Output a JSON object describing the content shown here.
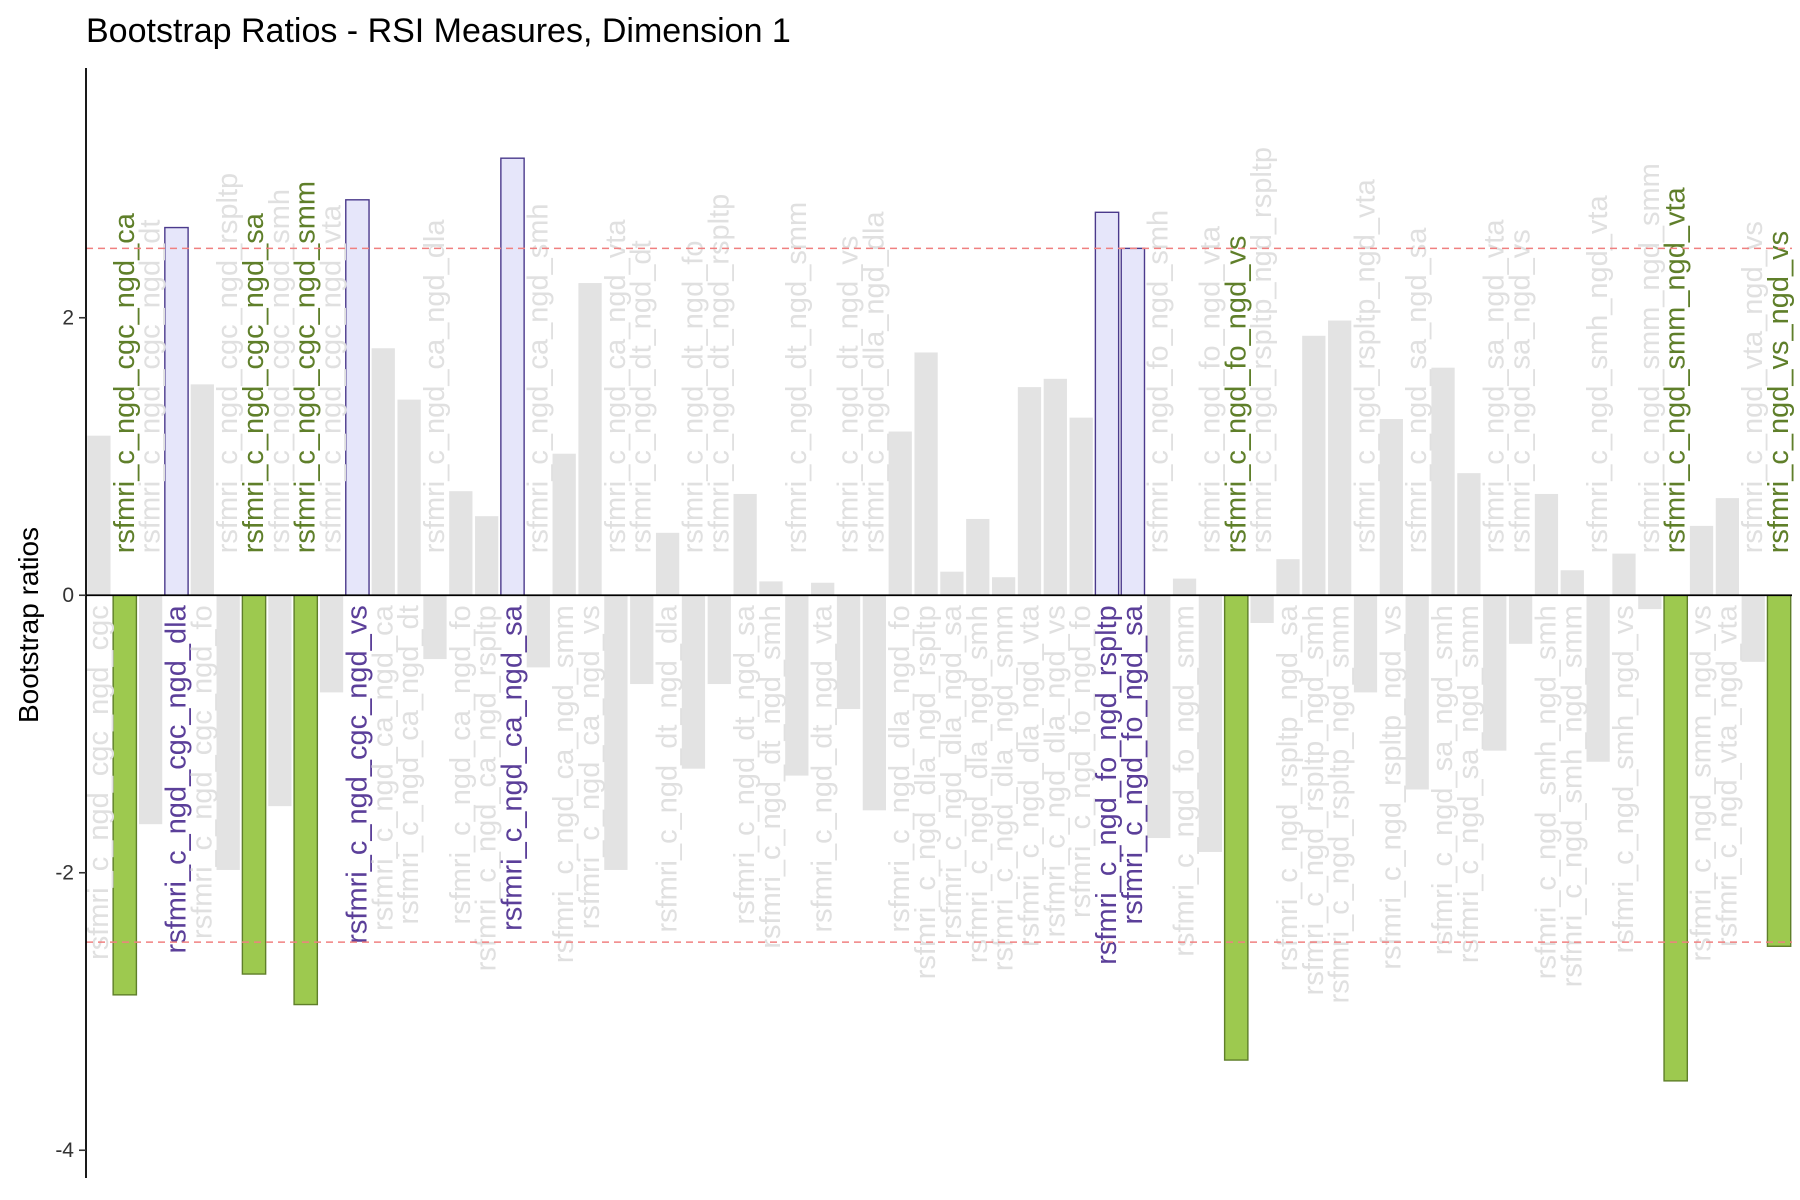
{
  "chart_data": {
    "type": "bar",
    "title": "Bootstrap Ratios - RSI Measures, Dimension 1",
    "xlabel": "",
    "ylabel": "Bootstrap ratios",
    "ylim": [
      -4.2,
      3.8
    ],
    "yticks": [
      -4,
      -2,
      0,
      2
    ],
    "threshold": 2.5,
    "grid": false,
    "colors": {
      "positive_fill": "#e6e6fa",
      "positive_stroke": "#4b3a8c",
      "positive_text": "#5b3f99",
      "negative_fill": "#9dc94f",
      "negative_stroke": "#5f7f2a",
      "negative_text": "#5f7f2a",
      "nonsig_fill": "#e3e3e3",
      "nonsig_text": "#e0e0e0",
      "threshold_line": "#f08080"
    },
    "bars": [
      {
        "label": "rsfmri_c_ngd_cgc_ngd_cgc",
        "value": 1.15
      },
      {
        "label": "rsfmri_c_ngd_cgc_ngd_ca",
        "value": -2.88
      },
      {
        "label": "rsfmri_c_ngd_cgc_ngd_dt",
        "value": -1.65
      },
      {
        "label": "rsfmri_c_ngd_cgc_ngd_dla",
        "value": 2.65
      },
      {
        "label": "rsfmri_c_ngd_cgc_ngd_fo",
        "value": 1.52
      },
      {
        "label": "rsfmri_c_ngd_cgc_ngd_rspltp",
        "value": -1.98
      },
      {
        "label": "rsfmri_c_ngd_cgc_ngd_sa",
        "value": -2.73
      },
      {
        "label": "rsfmri_c_ngd_cgc_ngd_smh",
        "value": -1.52
      },
      {
        "label": "rsfmri_c_ngd_cgc_ngd_smm",
        "value": -2.95
      },
      {
        "label": "rsfmri_c_ngd_cgc_ngd_vta",
        "value": -0.7
      },
      {
        "label": "rsfmri_c_ngd_cgc_ngd_vs",
        "value": 2.85
      },
      {
        "label": "rsfmri_c_ngd_ca_ngd_ca",
        "value": 1.78
      },
      {
        "label": "rsfmri_c_ngd_ca_ngd_dt",
        "value": 1.41
      },
      {
        "label": "rsfmri_c_ngd_ca_ngd_dla",
        "value": -0.46
      },
      {
        "label": "rsfmri_c_ngd_ca_ngd_fo",
        "value": 0.75
      },
      {
        "label": "rsfmri_c_ngd_ca_ngd_rspltp",
        "value": 0.57
      },
      {
        "label": "rsfmri_c_ngd_ca_ngd_sa",
        "value": 3.15
      },
      {
        "label": "rsfmri_c_ngd_ca_ngd_smh",
        "value": -0.52
      },
      {
        "label": "rsfmri_c_ngd_ca_ngd_smm",
        "value": 1.02
      },
      {
        "label": "rsfmri_c_ngd_ca_ngd_vs",
        "value": 2.25
      },
      {
        "label": "rsfmri_c_ngd_ca_ngd_vta",
        "value": -1.98
      },
      {
        "label": "rsfmri_c_ngd_dt_ngd_dt",
        "value": -0.64
      },
      {
        "label": "rsfmri_c_ngd_dt_ngd_dla",
        "value": 0.45
      },
      {
        "label": "rsfmri_c_ngd_dt_ngd_fo",
        "value": -1.25
      },
      {
        "label": "rsfmri_c_ngd_dt_ngd_rspltp",
        "value": -0.64
      },
      {
        "label": "rsfmri_c_ngd_dt_ngd_sa",
        "value": 0.73
      },
      {
        "label": "rsfmri_c_ngd_dt_ngd_smh",
        "value": 0.1
      },
      {
        "label": "rsfmri_c_ngd_dt_ngd_smm",
        "value": -1.3
      },
      {
        "label": "rsfmri_c_ngd_dt_ngd_vta",
        "value": 0.09
      },
      {
        "label": "rsfmri_c_ngd_dt_ngd_vs",
        "value": -0.82
      },
      {
        "label": "rsfmri_c_ngd_dla_ngd_dla",
        "value": -1.55
      },
      {
        "label": "rsfmri_c_ngd_dla_ngd_fo",
        "value": 1.18
      },
      {
        "label": "rsfmri_c_ngd_dla_ngd_rspltp",
        "value": 1.75
      },
      {
        "label": "rsfmri_c_ngd_dla_ngd_sa",
        "value": 0.17
      },
      {
        "label": "rsfmri_c_ngd_dla_ngd_smh",
        "value": 0.55
      },
      {
        "label": "rsfmri_c_ngd_dla_ngd_smm",
        "value": 0.13
      },
      {
        "label": "rsfmri_c_ngd_dla_ngd_vta",
        "value": 1.5
      },
      {
        "label": "rsfmri_c_ngd_dla_ngd_vs",
        "value": 1.56
      },
      {
        "label": "rsfmri_c_ngd_fo_ngd_fo",
        "value": 1.28
      },
      {
        "label": "rsfmri_c_ngd_fo_ngd_rspltp",
        "value": 2.76
      },
      {
        "label": "rsfmri_c_ngd_fo_ngd_sa",
        "value": 2.5
      },
      {
        "label": "rsfmri_c_ngd_fo_ngd_smh",
        "value": -1.75
      },
      {
        "label": "rsfmri_c_ngd_fo_ngd_smm",
        "value": 0.12
      },
      {
        "label": "rsfmri_c_ngd_fo_ngd_vta",
        "value": -1.85
      },
      {
        "label": "rsfmri_c_ngd_fo_ngd_vs",
        "value": -3.35
      },
      {
        "label": "rsfmri_c_ngd_rspltp_ngd_rspltp",
        "value": -0.2
      },
      {
        "label": "rsfmri_c_ngd_rspltp_ngd_sa",
        "value": 0.26
      },
      {
        "label": "rsfmri_c_ngd_rspltp_ngd_smh",
        "value": 1.87
      },
      {
        "label": "rsfmri_c_ngd_rspltp_ngd_smm",
        "value": 1.98
      },
      {
        "label": "rsfmri_c_ngd_rspltp_ngd_vta",
        "value": -0.7
      },
      {
        "label": "rsfmri_c_ngd_rspltp_ngd_vs",
        "value": 1.27
      },
      {
        "label": "rsfmri_c_ngd_sa_ngd_sa",
        "value": -1.4
      },
      {
        "label": "rsfmri_c_ngd_sa_ngd_smh",
        "value": 1.64
      },
      {
        "label": "rsfmri_c_ngd_sa_ngd_smm",
        "value": 0.88
      },
      {
        "label": "rsfmri_c_ngd_sa_ngd_vta",
        "value": -1.12
      },
      {
        "label": "rsfmri_c_ngd_sa_ngd_vs",
        "value": -0.35
      },
      {
        "label": "rsfmri_c_ngd_smh_ngd_smh",
        "value": 0.73
      },
      {
        "label": "rsfmri_c_ngd_smh_ngd_smm",
        "value": 0.18
      },
      {
        "label": "rsfmri_c_ngd_smh_ngd_vta",
        "value": -1.2
      },
      {
        "label": "rsfmri_c_ngd_smh_ngd_vs",
        "value": 0.3
      },
      {
        "label": "rsfmri_c_ngd_smm_ngd_smm",
        "value": -0.1
      },
      {
        "label": "rsfmri_c_ngd_smm_ngd_vta",
        "value": -3.5
      },
      {
        "label": "rsfmri_c_ngd_smm_ngd_vs",
        "value": 0.5
      },
      {
        "label": "rsfmri_c_ngd_vta_ngd_vta",
        "value": 0.7
      },
      {
        "label": "rsfmri_c_ngd_vta_ngd_vs",
        "value": -0.48
      },
      {
        "label": "rsfmri_c_ngd_vs_ngd_vs",
        "value": -2.53
      }
    ]
  }
}
